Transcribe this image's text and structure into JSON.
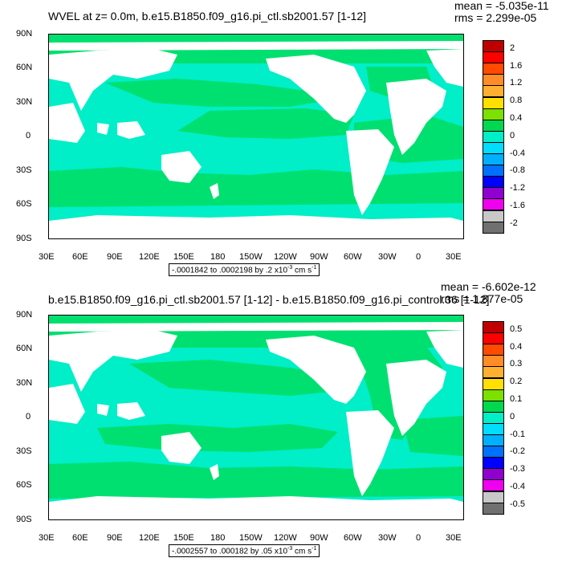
{
  "colors": {
    "ocean_main": "#00eec8",
    "ocean_upwell": "#00e070",
    "land": "#ffffff"
  },
  "lat_labels": [
    "90N",
    "60N",
    "30N",
    "0",
    "30S",
    "60S",
    "90S"
  ],
  "lon_labels": [
    "30E",
    "60E",
    "90E",
    "120E",
    "150E",
    "180",
    "150W",
    "120W",
    "90W",
    "60W",
    "30W",
    "0",
    "30E"
  ],
  "panels": [
    {
      "title": "WVEL at z=   0.0m, b.e15.B1850.f09_g16.pi_ctl.sb2001.57 [1-12]",
      "mean": "mean = -5.035e-11",
      "rms": "rms = 2.299e-05",
      "range_text": "-.0001842 to .0002198 by .2 x10",
      "range_exp": "-3",
      "range_unit": " cm s",
      "range_unit_exp": "-1",
      "colorbar": {
        "labels": [
          "2",
          "1.6",
          "1.2",
          "0.8",
          "0.4",
          "0",
          "-0.4",
          "-0.8",
          "-1.2",
          "-1.6",
          "-2"
        ],
        "colors": [
          "#c00000",
          "#ff0000",
          "#ff4a00",
          "#ff8c26",
          "#ffb030",
          "#ffe000",
          "#7ce000",
          "#00d850",
          "#00eec8",
          "#00ddff",
          "#00b0ff",
          "#0070ff",
          "#0000ff",
          "#9000d0",
          "#f000f0",
          "#c8c8c8",
          "#707070"
        ]
      }
    },
    {
      "title": "b.e15.B1850.f09_g16.pi_ctl.sb2001.57 [1-12] - b.e15.B1850.f09_g16.pi_control.36 [1-12]",
      "mean": "mean = -6.602e-12",
      "rms": "rms = 1.877e-05",
      "range_text": "-.0002557 to .000182 by .05 x10",
      "range_exp": "-3",
      "range_unit": " cm s",
      "range_unit_exp": "-1",
      "colorbar": {
        "labels": [
          "0.5",
          "0.4",
          "0.3",
          "0.2",
          "0.1",
          "0",
          "-0.1",
          "-0.2",
          "-0.3",
          "-0.4",
          "-0.5"
        ],
        "colors": [
          "#c00000",
          "#ff0000",
          "#ff4a00",
          "#ff8c26",
          "#ffb030",
          "#ffe000",
          "#7ce000",
          "#00d850",
          "#00eec8",
          "#00ddff",
          "#00b0ff",
          "#0070ff",
          "#0000ff",
          "#9000d0",
          "#f000f0",
          "#c8c8c8",
          "#707070"
        ]
      }
    }
  ]
}
